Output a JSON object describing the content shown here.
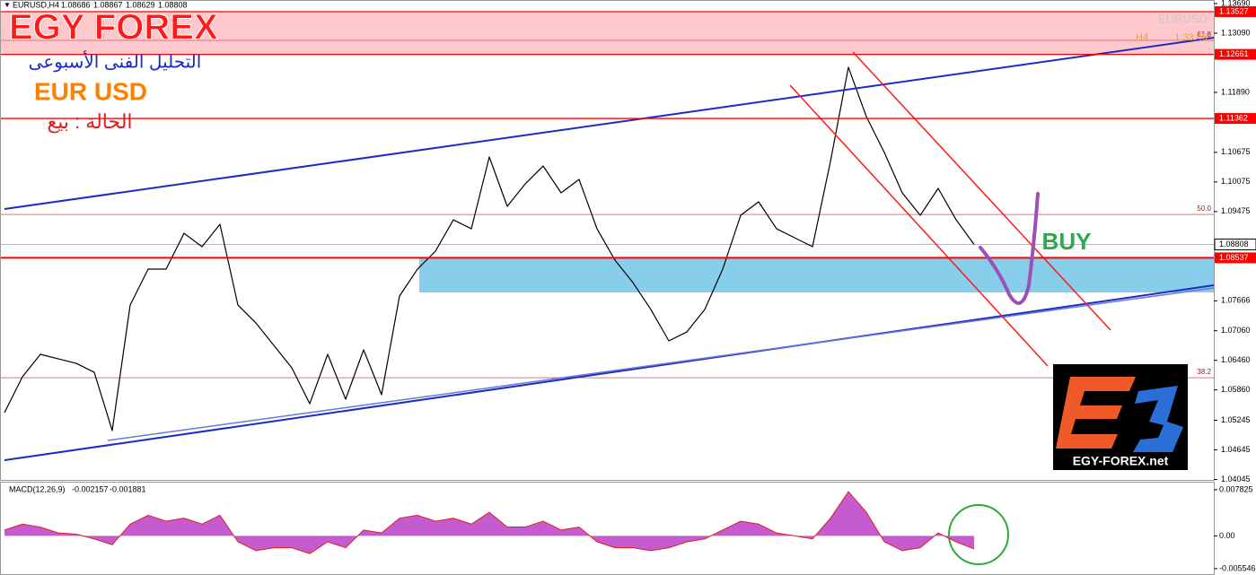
{
  "header": {
    "symbol": "EURUSD,H4",
    "open": 1.08686,
    "high": 1.08867,
    "low": 1.08629,
    "close": 1.08808
  },
  "overlay": {
    "brand": "EGY FOREX",
    "subtitle": "التحليل الفنى الأسبوعى",
    "pair": "EUR USD",
    "status": "الحالة : بيع",
    "signal": "BUY",
    "logo_text": "EGY-FOREX.net",
    "watermark": "EURUSD",
    "timeframe": "H4",
    "countdown": "1:33:45"
  },
  "chart_data": [
    {
      "type": "line",
      "name": "EURUSD",
      "color": "#000000",
      "values": [
        1.05399,
        1.06126,
        1.06581,
        1.0649,
        1.06399,
        1.06217,
        1.05035,
        1.07581,
        1.08308,
        1.08308,
        1.09035,
        1.08763,
        1.09217,
        1.07581,
        1.07217,
        1.06763,
        1.06308,
        1.05581,
        1.06581,
        1.05672,
        1.06672,
        1.05763,
        1.07763,
        1.08308,
        1.08672,
        1.09308,
        1.09126,
        1.10581,
        1.09581,
        1.10035,
        1.10399,
        1.09854,
        1.10126,
        1.09126,
        1.0849,
        1.08035,
        1.0749,
        1.06854,
        1.07035,
        1.0749,
        1.08308,
        1.09399,
        1.09672,
        1.09126,
        1.08945,
        1.08763,
        1.1049,
        1.12399,
        1.11399,
        1.10672,
        1.09854,
        1.09399,
        1.09945,
        1.09308,
        1.08808
      ],
      "ylim": [
        1.03945,
        1.13763
      ],
      "yticks": [
        {
          "value": 1.1369,
          "label": "1.13690"
        },
        {
          "value": 1.1309,
          "label": "1.13090"
        },
        {
          "value": 1.1189,
          "label": "1.11890"
        },
        {
          "value": 1.10675,
          "label": "1.10675"
        },
        {
          "value": 1.10075,
          "label": "1.10075"
        },
        {
          "value": 1.09475,
          "label": "1.09475"
        },
        {
          "value": 1.07666,
          "label": "1.07666"
        },
        {
          "value": 1.0706,
          "label": "1.07060"
        },
        {
          "value": 1.0646,
          "label": "1.06460"
        },
        {
          "value": 1.0586,
          "label": "1.05860"
        },
        {
          "value": 1.05245,
          "label": "1.05245"
        },
        {
          "value": 1.04645,
          "label": "1.04645"
        },
        {
          "value": 1.04045,
          "label": "1.04045"
        }
      ],
      "levels": [
        1.13527,
        1.12661,
        1.11362,
        1.08537
      ],
      "level_color": "#ff0000",
      "current_price": 1.08808,
      "fib_levels": [
        {
          "value": 1.12945,
          "label": "61.8"
        },
        {
          "value": 1.09417,
          "label": "50.0"
        },
        {
          "value": 1.06108,
          "label": "38.2"
        }
      ],
      "buy_zone_low": 1.07836,
      "buy_zone_color": "#87ceeb",
      "sell_zone_color": "#ffc8cc"
    },
    {
      "type": "area",
      "title": "MACD(12,26,9)",
      "main": -0.002157,
      "signal": -0.001881,
      "color": "#c45ccf",
      "line_color": "#e0201c",
      "values": [
        0.001,
        0.002,
        0.0015,
        0.0005,
        0.0003,
        -0.0005,
        -0.0015,
        0.002,
        0.0035,
        0.0025,
        0.003,
        0.002,
        0.0035,
        -0.001,
        -0.0025,
        -0.002,
        -0.002,
        -0.003,
        -0.001,
        -0.002,
        0.001,
        0.0005,
        0.003,
        0.0035,
        0.0025,
        0.003,
        0.002,
        0.004,
        0.0015,
        0.0015,
        0.0025,
        0.001,
        0.0015,
        -0.001,
        -0.002,
        -0.002,
        -0.0025,
        -0.002,
        -0.001,
        -0.0005,
        0.001,
        0.0025,
        0.002,
        0.0005,
        0,
        -0.0005,
        0.003,
        0.0075,
        0.004,
        -0.001,
        -0.0025,
        -0.002,
        0.0005,
        -0.001,
        -0.0022
      ],
      "ylim": [
        -0.00662,
        0.00903
      ],
      "yticks": [
        0.007825,
        {
          "value": 0,
          "label": "0.00"
        },
        -0.005546
      ]
    }
  ]
}
